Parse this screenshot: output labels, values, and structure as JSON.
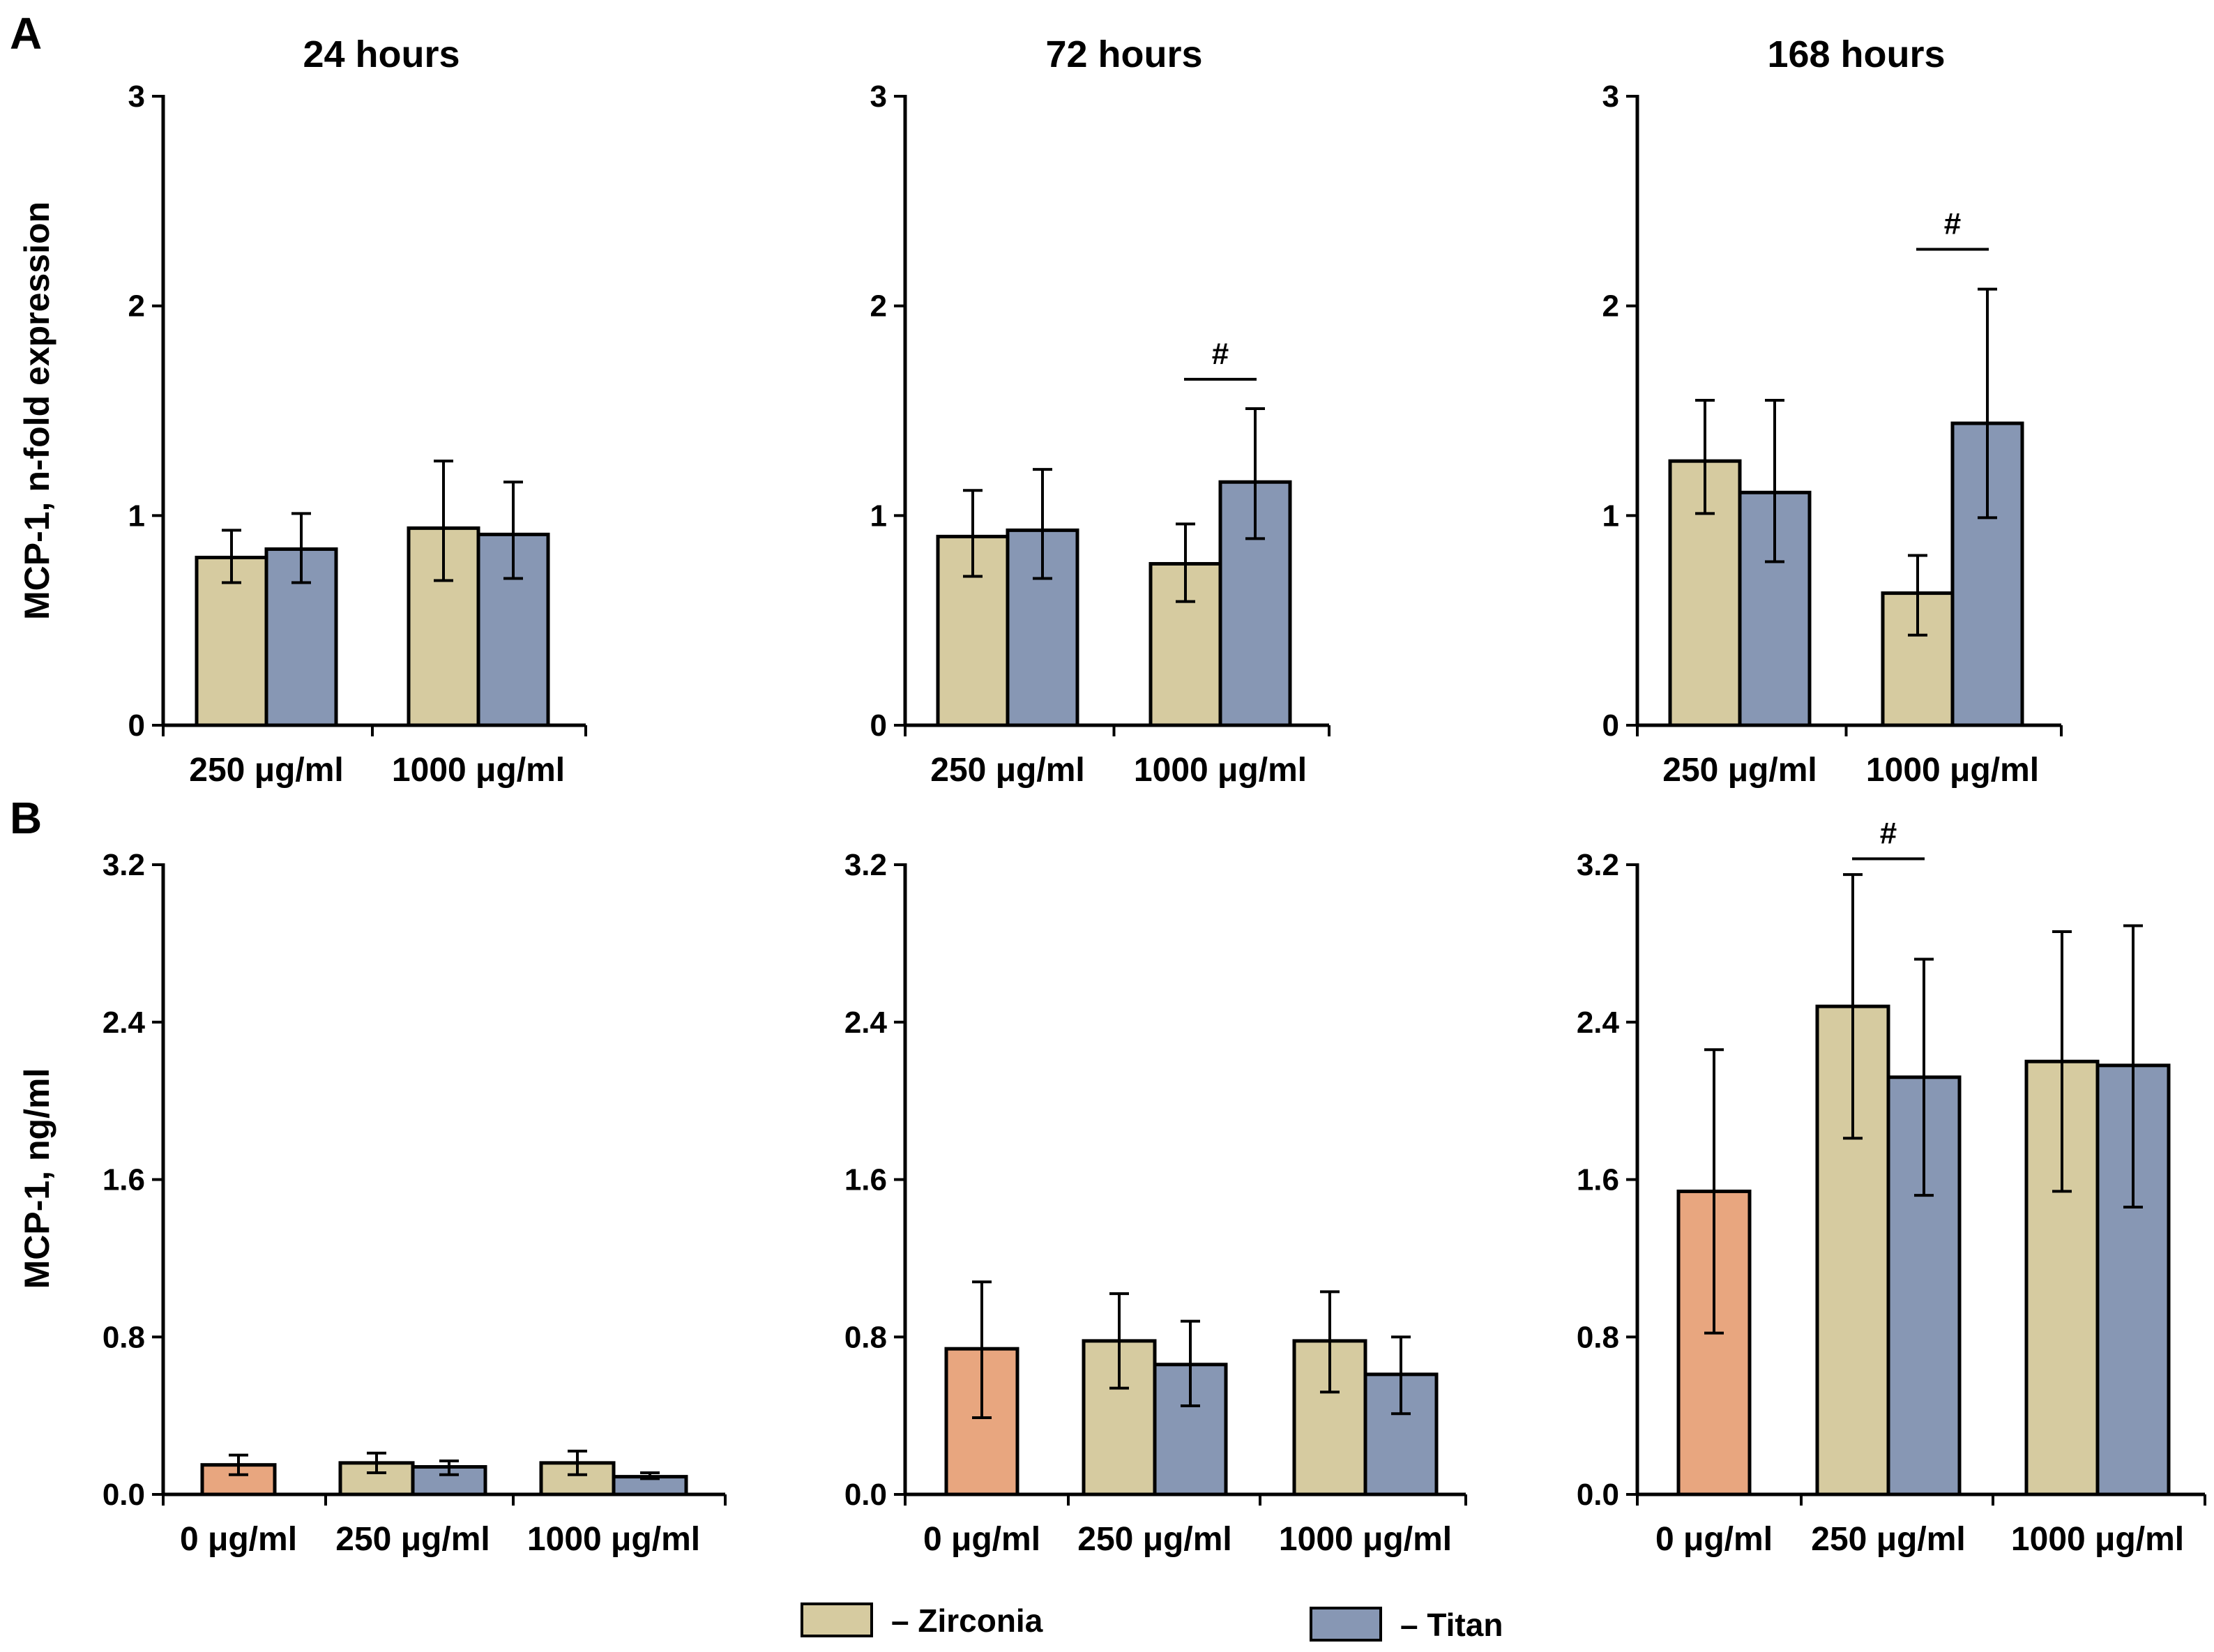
{
  "panel_labels": {
    "a": "A",
    "b": "B"
  },
  "colors": {
    "zirconia": "#d6cba0",
    "titan": "#8797b4",
    "control": "#e8a67f",
    "axis": "#000000"
  },
  "legend": {
    "zirconia_label": "– Zirconia",
    "titan_label": "– Titan"
  },
  "chart_data": [
    {
      "row": "A",
      "type": "bar",
      "title": "24 hours",
      "ylabel": "MCP-1, n-fold expression",
      "ylim": [
        0,
        3
      ],
      "yticks": [
        "0",
        "1",
        "2",
        "3"
      ],
      "grid": false,
      "groups": [
        {
          "label": "250 μg/ml",
          "bars": [
            {
              "series": "zirconia",
              "value": 0.8,
              "low": 0.68,
              "high": 0.93
            },
            {
              "series": "titan",
              "value": 0.84,
              "low": 0.68,
              "high": 1.01
            }
          ]
        },
        {
          "label": "1000 μg/ml",
          "bars": [
            {
              "series": "zirconia",
              "value": 0.94,
              "low": 0.69,
              "high": 1.26
            },
            {
              "series": "titan",
              "value": 0.91,
              "low": 0.7,
              "high": 1.16
            }
          ]
        }
      ],
      "annotations": []
    },
    {
      "row": "A",
      "type": "bar",
      "title": "72 hours",
      "ylabel": "",
      "ylim": [
        0,
        3
      ],
      "yticks": [
        "0",
        "1",
        "2",
        "3"
      ],
      "grid": false,
      "groups": [
        {
          "label": "250 μg/ml",
          "bars": [
            {
              "series": "zirconia",
              "value": 0.9,
              "low": 0.71,
              "high": 1.12
            },
            {
              "series": "titan",
              "value": 0.93,
              "low": 0.7,
              "high": 1.22
            }
          ]
        },
        {
          "label": "1000 μg/ml",
          "bars": [
            {
              "series": "zirconia",
              "value": 0.77,
              "low": 0.59,
              "high": 0.96
            },
            {
              "series": "titan",
              "value": 1.16,
              "low": 0.89,
              "high": 1.51
            }
          ]
        }
      ],
      "annotations": [
        {
          "text": "#",
          "group": 1,
          "value": 1.65
        }
      ]
    },
    {
      "row": "A",
      "type": "bar",
      "title": "168 hours",
      "ylabel": "",
      "ylim": [
        0,
        3
      ],
      "yticks": [
        "0",
        "1",
        "2",
        "3"
      ],
      "grid": false,
      "groups": [
        {
          "label": "250 μg/ml",
          "bars": [
            {
              "series": "zirconia",
              "value": 1.26,
              "low": 1.01,
              "high": 1.55
            },
            {
              "series": "titan",
              "value": 1.11,
              "low": 0.78,
              "high": 1.55
            }
          ]
        },
        {
          "label": "1000 μg/ml",
          "bars": [
            {
              "series": "zirconia",
              "value": 0.63,
              "low": 0.43,
              "high": 0.81
            },
            {
              "series": "titan",
              "value": 1.44,
              "low": 0.99,
              "high": 2.08
            }
          ]
        }
      ],
      "annotations": [
        {
          "text": "#",
          "group": 1,
          "value": 2.27
        }
      ]
    },
    {
      "row": "B",
      "type": "bar",
      "title": "",
      "ylabel": "MCP-1, ng/ml",
      "ylim": [
        0,
        3.2
      ],
      "yticks": [
        "0.0",
        "0.8",
        "1.6",
        "2.4",
        "3.2"
      ],
      "grid": false,
      "groups": [
        {
          "label": "0 μg/ml",
          "bars": [
            {
              "series": "control",
              "value": 0.15,
              "low": 0.1,
              "high": 0.2
            }
          ]
        },
        {
          "label": "250 μg/ml",
          "bars": [
            {
              "series": "zirconia",
              "value": 0.16,
              "low": 0.11,
              "high": 0.21
            },
            {
              "series": "titan",
              "value": 0.14,
              "low": 0.1,
              "high": 0.17
            }
          ]
        },
        {
          "label": "1000 μg/ml",
          "bars": [
            {
              "series": "zirconia",
              "value": 0.16,
              "low": 0.1,
              "high": 0.22
            },
            {
              "series": "titan",
              "value": 0.09,
              "low": 0.08,
              "high": 0.11
            }
          ]
        }
      ],
      "annotations": []
    },
    {
      "row": "B",
      "type": "bar",
      "title": "",
      "ylabel": "",
      "ylim": [
        0,
        3.2
      ],
      "yticks": [
        "0.0",
        "0.8",
        "1.6",
        "2.4",
        "3.2"
      ],
      "grid": false,
      "groups": [
        {
          "label": "0 μg/ml",
          "bars": [
            {
              "series": "control",
              "value": 0.74,
              "low": 0.39,
              "high": 1.08
            }
          ]
        },
        {
          "label": "250 μg/ml",
          "bars": [
            {
              "series": "zirconia",
              "value": 0.78,
              "low": 0.54,
              "high": 1.02
            },
            {
              "series": "titan",
              "value": 0.66,
              "low": 0.45,
              "high": 0.88
            }
          ]
        },
        {
          "label": "1000 μg/ml",
          "bars": [
            {
              "series": "zirconia",
              "value": 0.78,
              "low": 0.52,
              "high": 1.03
            },
            {
              "series": "titan",
              "value": 0.61,
              "low": 0.41,
              "high": 0.8
            }
          ]
        }
      ],
      "annotations": []
    },
    {
      "row": "B",
      "type": "bar",
      "title": "",
      "ylabel": "",
      "ylim": [
        0,
        3.2
      ],
      "yticks": [
        "0.0",
        "0.8",
        "1.6",
        "2.4",
        "3.2"
      ],
      "grid": false,
      "groups": [
        {
          "label": "0 μg/ml",
          "bars": [
            {
              "series": "control",
              "value": 1.54,
              "low": 0.82,
              "high": 2.26
            }
          ]
        },
        {
          "label": "250 μg/ml",
          "bars": [
            {
              "series": "zirconia",
              "value": 2.48,
              "low": 1.81,
              "high": 3.15
            },
            {
              "series": "titan",
              "value": 2.12,
              "low": 1.52,
              "high": 2.72
            }
          ]
        },
        {
          "label": "1000 μg/ml",
          "bars": [
            {
              "series": "zirconia",
              "value": 2.2,
              "low": 1.54,
              "high": 2.86
            },
            {
              "series": "titan",
              "value": 2.18,
              "low": 1.46,
              "high": 2.89
            }
          ]
        }
      ],
      "annotations": [
        {
          "text": "#",
          "group": 1,
          "value": 3.23
        }
      ]
    }
  ]
}
